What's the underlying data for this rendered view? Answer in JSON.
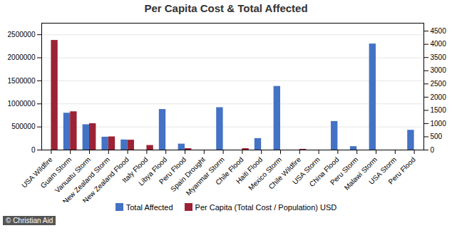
{
  "chart_data": {
    "type": "bar",
    "title": "Per Capita Cost & Total Affected",
    "categories": [
      "USA Wildfire",
      "Guam Storm",
      "Vanuatu Storm",
      "New Zealand Storm",
      "New Zealand Flood",
      "Italy Flood",
      "Libya Flood",
      "Peru Flood",
      "Spain Drought",
      "Myanmar Storm",
      "Chile Flood",
      "Haiti Flood",
      "Mexico Storm",
      "Chile Wildfire",
      "USA Storm",
      "China Flood",
      "Peru Storm",
      "Malawi Storm",
      "USA Storm",
      "Peru Flood"
    ],
    "series": [
      {
        "name": "Total Affected",
        "color": "#4472C4",
        "values": [
          0,
          800000,
          550000,
          280000,
          220000,
          0,
          880000,
          130000,
          0,
          920000,
          0,
          250000,
          1380000,
          0,
          0,
          620000,
          75000,
          2300000,
          0,
          430000
        ]
      },
      {
        "name": "Per Capita (Total Cost / Population) USD",
        "color": "#9B2335",
        "axis": "y2",
        "values": [
          4150,
          1450,
          1000,
          500,
          375,
          175,
          0,
          55,
          0,
          0,
          55,
          0,
          0,
          30,
          0,
          0,
          0,
          0,
          0,
          0
        ]
      }
    ],
    "ylim": [
      0,
      2750000
    ],
    "yticks": [
      0,
      500000,
      1000000,
      1500000,
      2000000,
      2500000
    ],
    "y2lim": [
      0,
      4800
    ],
    "y2ticks": [
      0,
      500,
      1000,
      1500,
      2000,
      2500,
      3000,
      3500,
      4000,
      4500
    ],
    "grid": true,
    "legend": "bottom",
    "annotations": [
      "© Christian Aid"
    ]
  }
}
